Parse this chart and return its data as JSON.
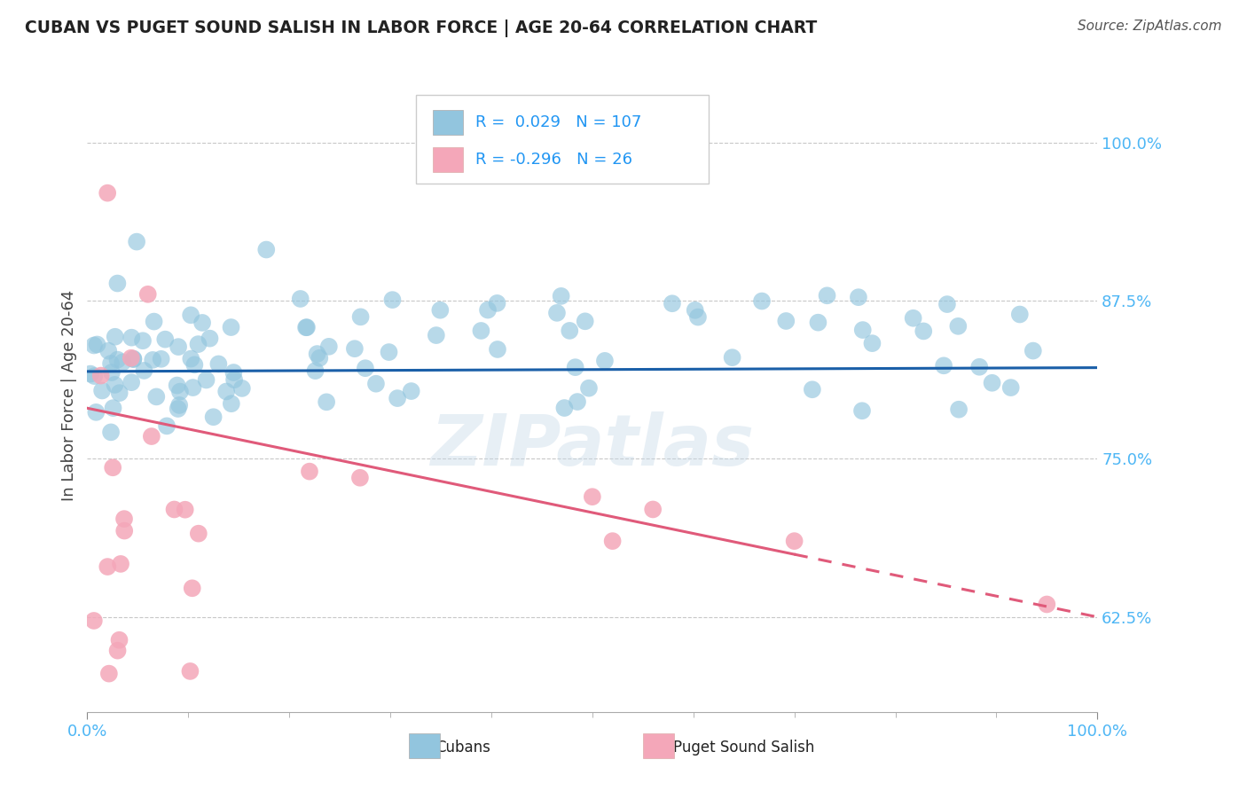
{
  "title": "CUBAN VS PUGET SOUND SALISH IN LABOR FORCE | AGE 20-64 CORRELATION CHART",
  "source_text": "Source: ZipAtlas.com",
  "ylabel": "In Labor Force | Age 20-64",
  "yticks": [
    0.625,
    0.75,
    0.875,
    1.0
  ],
  "ytick_labels": [
    "62.5%",
    "75.0%",
    "87.5%",
    "100.0%"
  ],
  "xlim": [
    0.0,
    1.0
  ],
  "ylim": [
    0.55,
    1.05
  ],
  "cuban_R": 0.029,
  "cuban_N": 107,
  "salish_R": -0.296,
  "salish_N": 26,
  "cuban_color": "#92c5de",
  "cuban_line_color": "#1a5fa8",
  "salish_color": "#f4a7b9",
  "salish_line_color": "#e05a7a",
  "background_color": "#ffffff",
  "watermark": "ZIPatlas",
  "legend_R_color": "#2196F3",
  "legend_N_color": "#222222",
  "tick_label_color": "#4db6f5",
  "grid_color": "#c8c8c8",
  "title_color": "#222222",
  "source_color": "#555555"
}
